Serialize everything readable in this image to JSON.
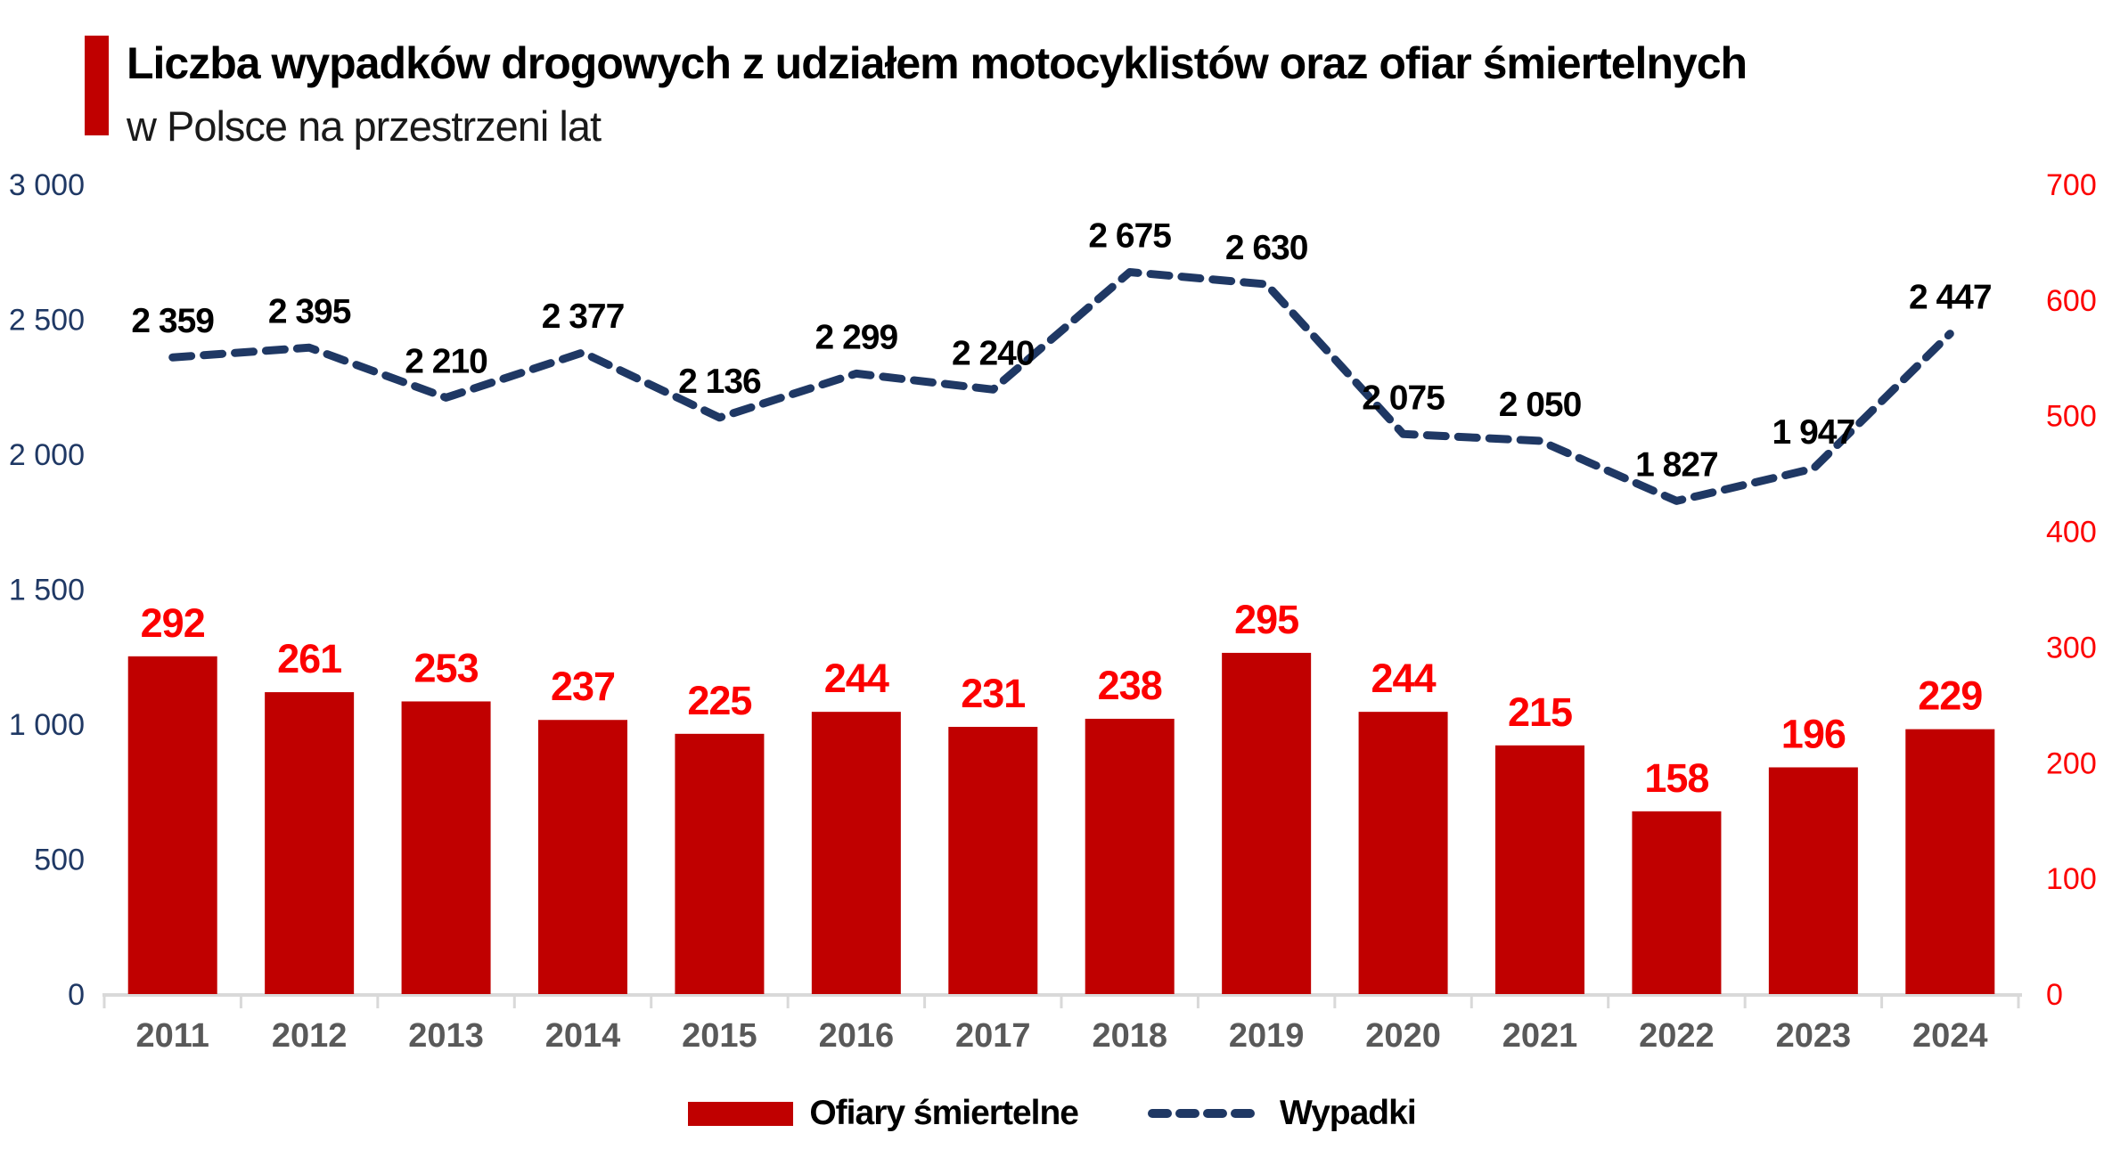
{
  "title": {
    "line1": "Liczba wypadków drogowych z udziałem motocyklistów oraz ofiar śmiertelnych",
    "line2": "w Polsce na przestrzeni lat"
  },
  "legend": {
    "position": "bottom",
    "items": [
      {
        "label": "Ofiary śmiertelne",
        "swatch": "bar"
      },
      {
        "label": "Wypadki",
        "swatch": "dashed-line"
      }
    ]
  },
  "colors": {
    "bar": "#C00000",
    "bar_label": "#FC0000",
    "line": "#1F3864",
    "line_label": "#000000",
    "left_axis_label": "#1F3864",
    "right_axis_label": "#FC0000",
    "x_axis_label": "#595959",
    "axis_line": "#D9D9D9",
    "title_accent": "#C00000",
    "background": "#FFFFFF"
  },
  "chart_data": {
    "type": "bar+line dual-axis combo",
    "categories": [
      "2011",
      "2012",
      "2013",
      "2014",
      "2015",
      "2016",
      "2017",
      "2018",
      "2019",
      "2020",
      "2021",
      "2022",
      "2023",
      "2024"
    ],
    "series": [
      {
        "name": "Ofiary śmiertelne",
        "type": "bar",
        "axis": "right",
        "values": [
          292,
          261,
          253,
          237,
          225,
          244,
          231,
          238,
          295,
          244,
          215,
          158,
          196,
          229
        ],
        "labels": [
          "292",
          "261",
          "253",
          "237",
          "225",
          "244",
          "231",
          "238",
          "295",
          "244",
          "215",
          "158",
          "196",
          "229"
        ]
      },
      {
        "name": "Wypadki",
        "type": "line",
        "style": "dashed",
        "axis": "left",
        "values": [
          2359,
          2395,
          2210,
          2377,
          2136,
          2299,
          2240,
          2675,
          2630,
          2075,
          2050,
          1827,
          1947,
          2447
        ],
        "labels": [
          "2 359",
          "2 395",
          "2 210",
          "2 377",
          "2 136",
          "2 299",
          "2 240",
          "2 675",
          "2 630",
          "2 075",
          "2 050",
          "1 827",
          "1 947",
          "2 447"
        ]
      }
    ],
    "left_axis": {
      "min": 0,
      "max": 3000,
      "step": 500,
      "tick_labels": [
        "0",
        "500",
        "1 000",
        "1 500",
        "2 000",
        "2 500",
        "3 000"
      ]
    },
    "right_axis": {
      "min": 0,
      "max": 700,
      "step": 100,
      "tick_labels": [
        "0",
        "100",
        "200",
        "300",
        "400",
        "500",
        "600",
        "700"
      ]
    },
    "grid": false,
    "legend_position": "bottom"
  }
}
